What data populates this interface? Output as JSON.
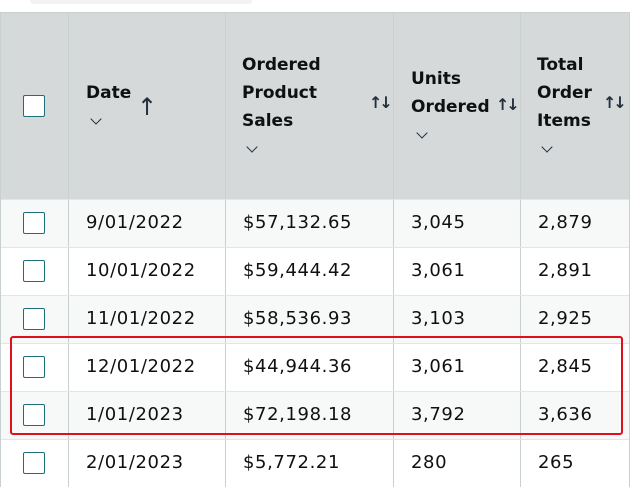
{
  "columns": {
    "date": {
      "line1": "Date"
    },
    "sales": {
      "line1": "Ordered",
      "line2": "Product",
      "line3": "Sales"
    },
    "units": {
      "line1": "Units",
      "line2": "Ordered"
    },
    "items": {
      "line1": "Total",
      "line2": "Order",
      "line3": "Items"
    }
  },
  "rows": [
    {
      "date": "9/01/2022",
      "sales": "$57,132.65",
      "units": "3,045",
      "items": "2,879"
    },
    {
      "date": "10/01/2022",
      "sales": "$59,444.42",
      "units": "3,061",
      "items": "2,891"
    },
    {
      "date": "11/01/2022",
      "sales": "$58,536.93",
      "units": "3,103",
      "items": "2,925"
    },
    {
      "date": "12/01/2022",
      "sales": "$44,944.36",
      "units": "3,061",
      "items": "2,845"
    },
    {
      "date": "1/01/2023",
      "sales": "$72,198.18",
      "units": "3,792",
      "items": "3,636"
    },
    {
      "date": "2/01/2023",
      "sales": "$5,772.21",
      "units": "280",
      "items": "265"
    }
  ],
  "icons": {
    "sort_ascending": "arrow-up-icon",
    "sortable": "sort-icon",
    "menu": "chevron-down-icon"
  },
  "colors": {
    "header_bg": "#d5d9d9",
    "checkbox_border": "#1a6f7a",
    "highlight": "#e10f1c"
  }
}
